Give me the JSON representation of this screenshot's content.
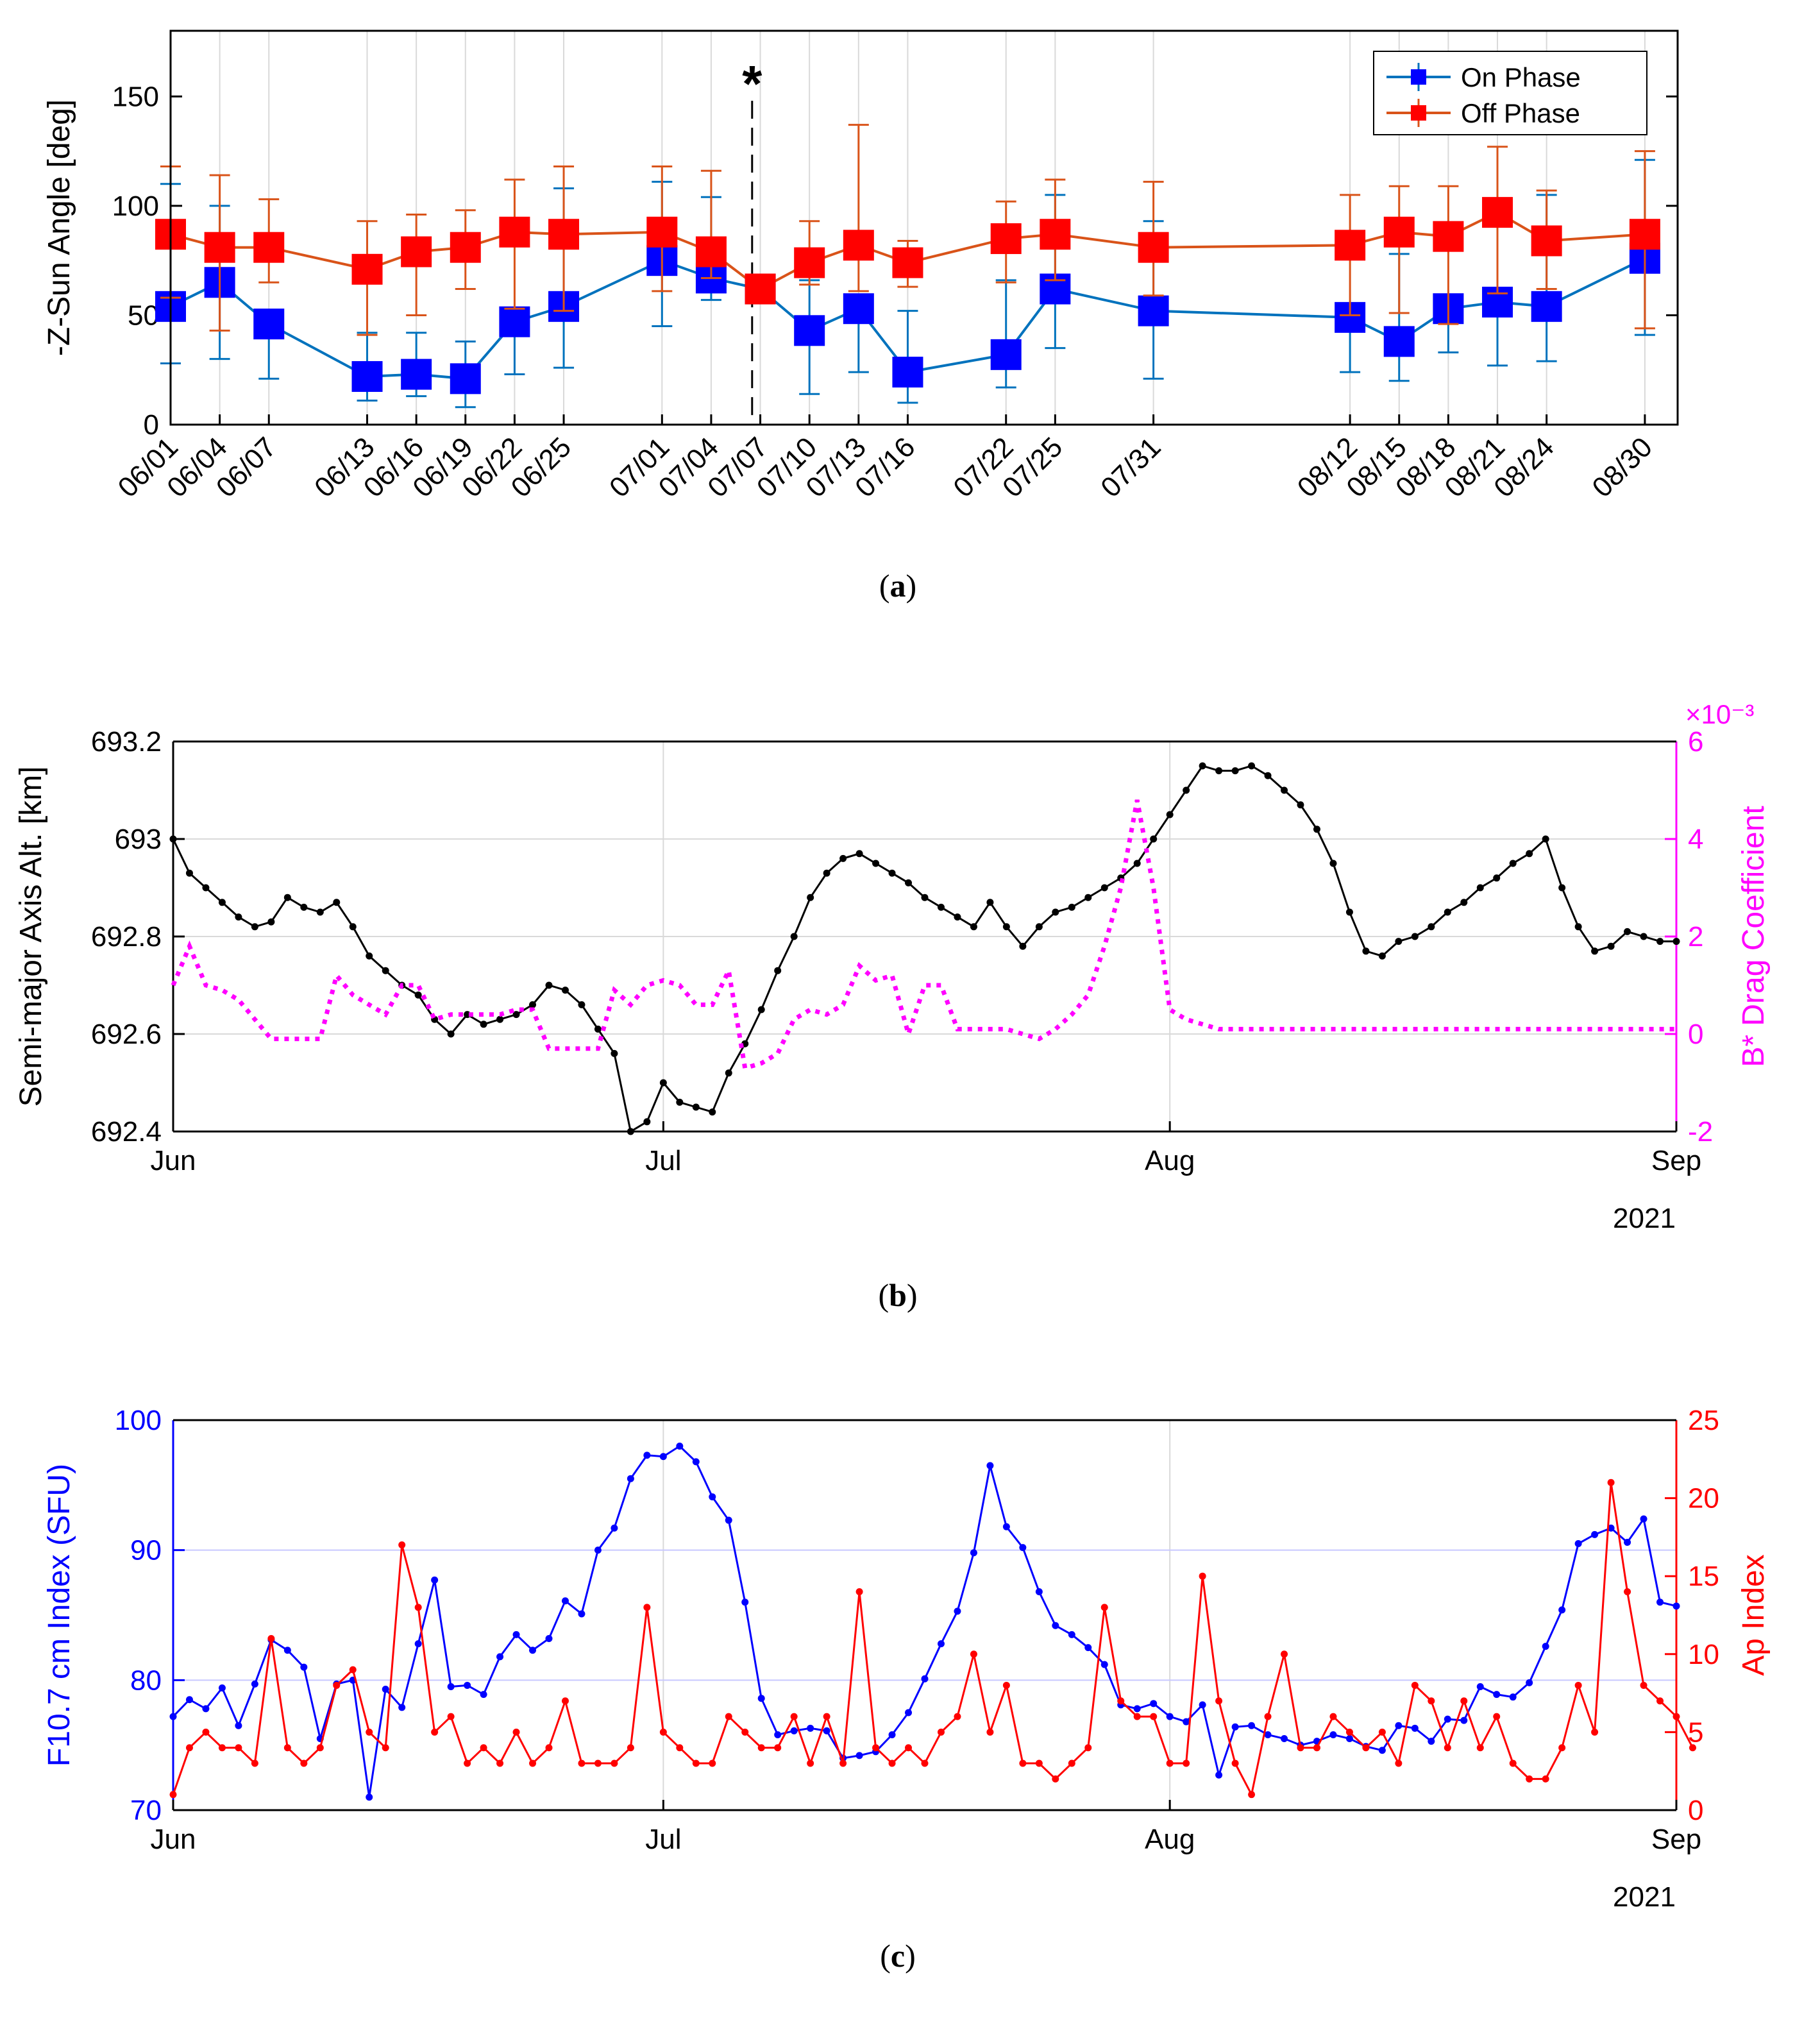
{
  "captions": {
    "a": "a",
    "b": "b",
    "c": "c"
  },
  "chart_data": [
    {
      "type": "line",
      "panel": "a",
      "ylabel": "-Z-Sun Angle [deg]",
      "ylim": [
        0,
        180
      ],
      "yticks": [
        0,
        50,
        100,
        150
      ],
      "xlim": [
        0,
        92
      ],
      "categories": [
        "06/01",
        "06/04",
        "06/07",
        "06/13",
        "06/16",
        "06/19",
        "06/22",
        "06/25",
        "07/01",
        "07/04",
        "07/07",
        "07/10",
        "07/13",
        "07/16",
        "07/22",
        "07/25",
        "07/31",
        "08/12",
        "08/15",
        "08/18",
        "08/21",
        "08/24",
        "08/30"
      ],
      "x": [
        0,
        3,
        6,
        12,
        15,
        18,
        21,
        24,
        30,
        33,
        36,
        39,
        42,
        45,
        51,
        54,
        60,
        72,
        75,
        78,
        81,
        84,
        90
      ],
      "annotation": {
        "text": "*",
        "x": 35.5
      },
      "legend": [
        "On Phase",
        "Off Phase"
      ],
      "legend_position": "top-right",
      "series": [
        {
          "name": "On Phase",
          "color": "#0072BD",
          "marker_color": "#0000ff",
          "x": [
            0,
            3,
            6,
            12,
            15,
            18,
            21,
            24,
            30,
            33,
            36,
            39,
            42,
            45,
            51,
            54,
            60,
            72,
            75,
            78,
            81,
            84,
            90
          ],
          "values": [
            54,
            65,
            46,
            22,
            23,
            21,
            47,
            54,
            75,
            67,
            62,
            43,
            53,
            24,
            32,
            62,
            52,
            49,
            38,
            53,
            56,
            54,
            76
          ],
          "err_low": [
            26,
            35,
            25,
            11,
            10,
            13,
            24,
            28,
            30,
            10,
            3,
            29,
            29,
            14,
            15,
            27,
            31,
            25,
            18,
            20,
            29,
            25,
            35
          ],
          "err_high": [
            56,
            35,
            0,
            20,
            19,
            17,
            0,
            54,
            36,
            37,
            4,
            23,
            0,
            28,
            34,
            43,
            41,
            0,
            40,
            0,
            0,
            51,
            45
          ]
        },
        {
          "name": "Off Phase",
          "color": "#D95319",
          "marker_color": "#ff0000",
          "x": [
            0,
            3,
            6,
            12,
            15,
            18,
            21,
            24,
            30,
            33,
            36,
            39,
            42,
            45,
            51,
            54,
            60,
            72,
            75,
            78,
            81,
            84,
            90
          ],
          "values": [
            87,
            81,
            81,
            71,
            79,
            81,
            88,
            87,
            88,
            79,
            62,
            74,
            82,
            74,
            85,
            87,
            81,
            82,
            88,
            86,
            97,
            84,
            87
          ],
          "err_low": [
            29,
            38,
            16,
            30,
            29,
            19,
            35,
            35,
            27,
            12,
            0,
            10,
            21,
            11,
            20,
            21,
            22,
            32,
            37,
            40,
            37,
            22,
            43
          ],
          "err_high": [
            31,
            33,
            22,
            22,
            17,
            17,
            24,
            31,
            30,
            37,
            4,
            19,
            55,
            10,
            17,
            25,
            30,
            23,
            21,
            23,
            30,
            23,
            38
          ]
        }
      ]
    },
    {
      "type": "line",
      "panel": "b",
      "ylabel": "Semi-major Axis Alt. [km]",
      "y2label": "B* Drag Coefficient",
      "y2exponent": "×10⁻³",
      "ylim": [
        692.4,
        693.2
      ],
      "yticks": [
        692.4,
        692.6,
        692.8,
        693,
        693.2
      ],
      "y2lim": [
        -2,
        6
      ],
      "y2ticks": [
        -2,
        0,
        2,
        4,
        6
      ],
      "xlim": [
        0,
        92
      ],
      "xticks": [
        {
          "x": 0,
          "label": "Jun"
        },
        {
          "x": 30,
          "label": "Jul"
        },
        {
          "x": 61,
          "label": "Aug"
        },
        {
          "x": 92,
          "label": "Sep"
        }
      ],
      "year": "2021",
      "series": [
        {
          "name": "Semi-major Axis Alt.",
          "axis": "left",
          "color": "#000000",
          "x": [
            0,
            1,
            2,
            3,
            4,
            5,
            6,
            7,
            8,
            9,
            10,
            11,
            12,
            13,
            14,
            15,
            16,
            17,
            18,
            19,
            20,
            21,
            22,
            23,
            24,
            25,
            26,
            27,
            28,
            29,
            30,
            31,
            32,
            33,
            34,
            35,
            36,
            37,
            38,
            39,
            40,
            41,
            42,
            43,
            44,
            45,
            46,
            47,
            48,
            49,
            50,
            51,
            52,
            53,
            54,
            55,
            56,
            57,
            58,
            59,
            60,
            61,
            62,
            63,
            64,
            65,
            66,
            67,
            68,
            69,
            70,
            71,
            72,
            73,
            74,
            75,
            76,
            77,
            78,
            79,
            80,
            81,
            82,
            83,
            84,
            85,
            86,
            87,
            88,
            89,
            90,
            91,
            92
          ],
          "values": [
            693.0,
            692.93,
            692.9,
            692.87,
            692.84,
            692.82,
            692.83,
            692.88,
            692.86,
            692.85,
            692.87,
            692.82,
            692.76,
            692.73,
            692.7,
            692.68,
            692.63,
            692.6,
            692.64,
            692.62,
            692.63,
            692.64,
            692.66,
            692.7,
            692.69,
            692.66,
            692.61,
            692.56,
            692.4,
            692.42,
            692.5,
            692.46,
            692.45,
            692.44,
            692.52,
            692.58,
            692.65,
            692.73,
            692.8,
            692.88,
            692.93,
            692.96,
            692.97,
            692.95,
            692.93,
            692.91,
            692.88,
            692.86,
            692.84,
            692.82,
            692.87,
            692.82,
            692.78,
            692.82,
            692.85,
            692.86,
            692.88,
            692.9,
            692.92,
            692.95,
            693.0,
            693.05,
            693.1,
            693.15,
            693.14,
            693.14,
            693.15,
            693.13,
            693.1,
            693.07,
            693.02,
            692.95,
            692.85,
            692.77,
            692.76,
            692.79,
            692.8,
            692.82,
            692.85,
            692.87,
            692.9,
            692.92,
            692.95,
            692.97,
            693.0,
            692.9,
            692.82,
            692.77,
            692.78,
            692.81,
            692.8,
            692.79,
            692.79
          ]
        },
        {
          "name": "B* Drag Coefficient",
          "axis": "right",
          "color": "#ff00ff",
          "dashed": true,
          "x": [
            0,
            1,
            2,
            3,
            4,
            5,
            6,
            7,
            8,
            9,
            10,
            11,
            12,
            13,
            14,
            15,
            16,
            17,
            18,
            19,
            20,
            21,
            22,
            23,
            24,
            25,
            26,
            27,
            28,
            29,
            30,
            31,
            32,
            33,
            34,
            35,
            36,
            37,
            38,
            39,
            40,
            41,
            42,
            43,
            44,
            45,
            46,
            47,
            48,
            49,
            50,
            51,
            52,
            53,
            54,
            55,
            56,
            57,
            58,
            59,
            60,
            61,
            62,
            63,
            64,
            65,
            66,
            67,
            68,
            69,
            70,
            71,
            72,
            73,
            74,
            75,
            76,
            77,
            78,
            79,
            80,
            81,
            82,
            83,
            84,
            85,
            86,
            87,
            88,
            89,
            90,
            91,
            92
          ],
          "values": [
            1.0,
            1.8,
            1.0,
            0.9,
            0.7,
            0.3,
            -0.1,
            -0.1,
            -0.1,
            -0.1,
            1.2,
            0.8,
            0.6,
            0.4,
            1.0,
            1.0,
            0.3,
            0.4,
            0.4,
            0.4,
            0.4,
            0.5,
            0.5,
            -0.3,
            -0.3,
            -0.3,
            -0.3,
            0.9,
            0.6,
            1.0,
            1.1,
            1.0,
            0.6,
            0.6,
            1.3,
            -0.7,
            -0.6,
            -0.4,
            0.3,
            0.5,
            0.4,
            0.6,
            1.4,
            1.1,
            1.2,
            0.0,
            1.0,
            1.0,
            0.1,
            0.1,
            0.1,
            0.1,
            0.0,
            -0.1,
            0.1,
            0.4,
            0.8,
            1.8,
            3.0,
            4.8,
            3.0,
            0.5,
            0.3,
            0.2,
            0.1,
            0.1,
            0.1,
            0.1,
            0.1,
            0.1,
            0.1,
            0.1,
            0.1,
            0.1,
            0.1,
            0.1,
            0.1,
            0.1,
            0.1,
            0.1,
            0.1,
            0.1,
            0.1,
            0.1,
            0.1,
            0.1,
            0.1,
            0.1,
            0.1,
            0.1,
            0.1,
            0.1,
            0.1
          ]
        }
      ]
    },
    {
      "type": "line",
      "panel": "c",
      "ylabel": "F10.7 cm Index (SFU)",
      "y2label": "Ap Index",
      "ylim": [
        70,
        100
      ],
      "yticks": [
        70,
        80,
        90,
        100
      ],
      "y2lim": [
        0,
        25
      ],
      "y2ticks": [
        0,
        5,
        10,
        15,
        20,
        25
      ],
      "xlim": [
        0,
        92
      ],
      "xticks": [
        {
          "x": 0,
          "label": "Jun"
        },
        {
          "x": 30,
          "label": "Jul"
        },
        {
          "x": 61,
          "label": "Aug"
        },
        {
          "x": 92,
          "label": "Sep"
        }
      ],
      "year": "2021",
      "series": [
        {
          "name": "F10.7 cm Index",
          "axis": "left",
          "color": "#0000ff",
          "values": [
            77.2,
            78.5,
            77.8,
            79.4,
            76.5,
            79.7,
            83.1,
            82.3,
            81.0,
            75.5,
            79.7,
            80.0,
            71.0,
            79.3,
            77.9,
            82.8,
            87.7,
            79.5,
            79.6,
            78.9,
            81.8,
            83.5,
            82.3,
            83.2,
            86.1,
            85.1,
            90.0,
            91.7,
            95.5,
            97.3,
            97.2,
            98.0,
            96.8,
            94.1,
            92.3,
            86.0,
            78.6,
            75.8,
            76.1,
            76.3,
            76.1,
            74.0,
            74.2,
            74.5,
            75.8,
            77.5,
            80.1,
            82.8,
            85.3,
            89.8,
            96.5,
            91.8,
            90.2,
            86.8,
            84.2,
            83.5,
            82.5,
            81.2,
            78.1,
            77.8,
            78.2,
            77.2,
            76.8,
            78.1,
            72.7,
            76.4,
            76.5,
            75.8,
            75.5,
            75.0,
            75.3,
            75.8,
            75.5,
            74.9,
            74.6,
            76.5,
            76.3,
            75.3,
            77.0,
            76.9,
            79.5,
            78.9,
            78.7,
            79.8,
            82.6,
            85.4,
            90.5,
            91.2,
            91.7,
            90.6,
            92.4,
            86.0,
            85.7
          ]
        },
        {
          "name": "Ap Index",
          "axis": "right",
          "color": "#ff0000",
          "values": [
            1,
            4,
            5,
            4,
            4,
            3,
            11,
            4,
            3,
            4,
            8,
            9,
            5,
            4,
            17,
            13,
            5,
            6,
            3,
            4,
            3,
            5,
            3,
            4,
            7,
            3,
            3,
            3,
            4,
            13,
            5,
            4,
            3,
            3,
            6,
            5,
            4,
            4,
            6,
            3,
            6,
            3,
            14,
            4,
            3,
            4,
            3,
            5,
            6,
            10,
            5,
            8,
            3,
            3,
            2,
            3,
            4,
            13,
            7,
            6,
            6,
            3,
            3,
            15,
            7,
            3,
            1,
            6,
            10,
            4,
            4,
            6,
            5,
            4,
            5,
            3,
            8,
            7,
            4,
            7,
            4,
            6,
            3,
            2,
            2,
            4,
            8,
            5,
            21,
            14,
            8,
            7,
            6,
            4
          ]
        }
      ]
    }
  ]
}
